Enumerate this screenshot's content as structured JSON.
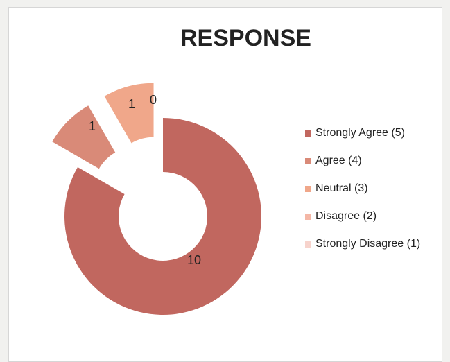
{
  "chart_data": {
    "type": "pie",
    "title": "RESPONSE",
    "categories": [
      "Strongly Agree (5)",
      "Agree (4)",
      "Neutral (3)",
      "Disagree (2)",
      "Strongly Disagree (1)"
    ],
    "values": [
      10,
      1,
      1,
      0,
      0
    ],
    "colors": [
      "#c1675f",
      "#d98a78",
      "#f0a78a",
      "#f4b7a6",
      "#f7d3cc"
    ],
    "donut": true,
    "legend_position": "right",
    "data_labels": [
      "10",
      "1",
      "1",
      "0",
      ""
    ]
  }
}
